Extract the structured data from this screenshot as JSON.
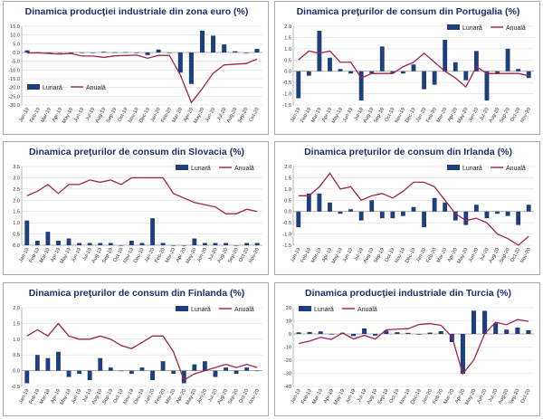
{
  "colors": {
    "bar": "#1d3f7e",
    "line": "#a0224e",
    "title": "#1f2d6b",
    "border": "#a9a9a9",
    "grid": "#dddddd"
  },
  "chart_data": [
    {
      "id": "euro-industry",
      "type": "bar",
      "title": "Dinamica producţiei industriale din zona euro (%)",
      "ylim": [
        -30,
        15
      ],
      "yticks": [
        "15.0",
        "10.0",
        "5.0",
        "0.0",
        "-5.0",
        "-10.0",
        "-15.0",
        "-20.0",
        "-25.0",
        "-30.0"
      ],
      "yticks_values": [
        15,
        10,
        5,
        0,
        -5,
        -10,
        -15,
        -20,
        -25,
        -30
      ],
      "categories": [
        "Jan-19",
        "Feb-19",
        "Mar-19",
        "Apr-19",
        "May-19",
        "Jun-19",
        "Jul-19",
        "Aug-19",
        "Sep-19",
        "Oct-19",
        "Nov-19",
        "Dec-19",
        "Jan-20",
        "Feb-20",
        "Mar-20",
        "Apr-20",
        "May-20",
        "Jun-20",
        "Jul-20",
        "Aug-20",
        "Sep-20",
        "Oct-20"
      ],
      "legend": {
        "position": "bottom-left",
        "bar_label": "Lunară",
        "line_label": "Anuală"
      },
      "series": [
        {
          "name": "Lunară",
          "kind": "bar",
          "values": [
            1.2,
            0.2,
            -0.3,
            -0.3,
            -0.5,
            -0.2,
            -0.3,
            0.4,
            0.1,
            0.2,
            -0.3,
            -1.5,
            1.7,
            -0.1,
            -11.5,
            -18.0,
            12.5,
            9.6,
            4.6,
            0.7,
            -0.1,
            2.1
          ]
        },
        {
          "name": "Anuală",
          "kind": "line",
          "values": [
            -0.3,
            -0.2,
            -0.6,
            -0.9,
            -0.6,
            -2.0,
            -2.0,
            -2.8,
            -1.9,
            -1.7,
            -1.5,
            -3.3,
            -1.6,
            -1.7,
            -12.9,
            -28.6,
            -20.7,
            -11.8,
            -7.1,
            -6.7,
            -6.3,
            -3.8
          ]
        }
      ]
    },
    {
      "id": "portugal-cpi",
      "type": "bar",
      "title": "Dinamica preţurilor de consum din Portugalia (%)",
      "ylim": [
        -1.5,
        2.0
      ],
      "yticks": [
        "2.0",
        "1.5",
        "1.0",
        "0.5",
        "0.0",
        "-0.5",
        "-1.0",
        "-1.5"
      ],
      "yticks_values": [
        2.0,
        1.5,
        1.0,
        0.5,
        0.0,
        -0.5,
        -1.0,
        -1.5
      ],
      "categories": [
        "Jan-19",
        "Feb-19",
        "Mar-19",
        "Apr-19",
        "May-19",
        "Jun-19",
        "Jul-19",
        "Aug-19",
        "Sep-19",
        "Oct-19",
        "Nov-19",
        "Dec-19",
        "Jan-20",
        "Feb-20",
        "Mar-20",
        "Apr-20",
        "May-20",
        "Jun-20",
        "Jul-20",
        "Aug-20",
        "Sep-20",
        "Oct-20",
        "Nov-20"
      ],
      "legend": {
        "position": "top-right",
        "bar_label": "Lunară",
        "line_label": "Anuală"
      },
      "series": [
        {
          "name": "Lunară",
          "kind": "bar",
          "values": [
            -1.2,
            -0.2,
            1.8,
            0.6,
            0.1,
            -0.1,
            -1.3,
            -0.1,
            1.1,
            -0.1,
            -0.1,
            0.3,
            -0.8,
            -0.6,
            1.4,
            0.4,
            -0.4,
            0.9,
            -1.3,
            -0.1,
            1.0,
            0.1,
            -0.3
          ]
        },
        {
          "name": "Anuală",
          "kind": "line",
          "values": [
            0.5,
            0.9,
            0.8,
            0.9,
            0.4,
            0.4,
            -0.3,
            -0.1,
            -0.1,
            -0.1,
            0.2,
            0.4,
            0.8,
            0.4,
            0.0,
            -0.3,
            -0.7,
            0.2,
            -0.1,
            -0.1,
            -0.1,
            -0.1,
            -0.2
          ]
        }
      ]
    },
    {
      "id": "slovakia-cpi",
      "type": "bar",
      "title": "Dinamica preţurilor de consum din Slovacia (%)",
      "ylim": [
        0,
        3.5
      ],
      "yticks": [
        "3.5",
        "3.0",
        "2.5",
        "2.0",
        "1.5",
        "1.0",
        "0.5",
        "0.0"
      ],
      "yticks_values": [
        3.5,
        3.0,
        2.5,
        2.0,
        1.5,
        1.0,
        0.5,
        0.0
      ],
      "categories": [
        "Jan-19",
        "Feb-19",
        "Mar-19",
        "Apr-19",
        "May-19",
        "Jun-19",
        "Jul-19",
        "Aug-19",
        "Sep-19",
        "Oct-19",
        "Nov-19",
        "Dec-19",
        "Jan-20",
        "Feb-20",
        "Mar-20",
        "Apr-20",
        "May-20",
        "Jun-20",
        "Jul-20",
        "Aug-20",
        "Sep-20",
        "Oct-20",
        "Nov-20"
      ],
      "legend": {
        "position": "top-right",
        "bar_label": "Lunară",
        "line_label": "Anuală"
      },
      "series": [
        {
          "name": "Lunară",
          "kind": "bar",
          "values": [
            1.1,
            0.2,
            0.6,
            0.2,
            0.3,
            0.1,
            0.1,
            0.1,
            0.1,
            0.0,
            0.2,
            0.1,
            1.2,
            0.1,
            0.0,
            0.0,
            0.3,
            0.1,
            0.1,
            0.1,
            0.0,
            0.1,
            0.1
          ]
        },
        {
          "name": "Anuală",
          "kind": "line",
          "values": [
            2.2,
            2.4,
            2.7,
            2.3,
            2.7,
            2.7,
            2.9,
            2.8,
            2.9,
            2.7,
            3.0,
            3.0,
            3.0,
            3.0,
            2.3,
            2.1,
            1.9,
            1.8,
            1.7,
            1.4,
            1.4,
            1.6,
            1.5
          ]
        }
      ]
    },
    {
      "id": "ireland-cpi",
      "type": "bar",
      "title": "Dinamica preţurilor de consum din Irlanda (%)",
      "ylim": [
        -1.5,
        2.0
      ],
      "yticks": [
        "2.0",
        "1.5",
        "1.0",
        "0.5",
        "0.0",
        "-0.5",
        "-1.0",
        "-1.5"
      ],
      "yticks_values": [
        2.0,
        1.5,
        1.0,
        0.5,
        0.0,
        -0.5,
        -1.0,
        -1.5
      ],
      "categories": [
        "Jan-19",
        "Feb-19",
        "Mar-19",
        "Apr-19",
        "May-19",
        "Jun-19",
        "Jul-19",
        "Aug-19",
        "Sep-19",
        "Oct-19",
        "Nov-19",
        "Dec-19",
        "Jan-20",
        "Feb-20",
        "Mar-20",
        "Apr-20",
        "May-20",
        "Jun-20",
        "Jul-20",
        "Aug-20",
        "Sep-20",
        "Oct-20",
        "Nov-20"
      ],
      "legend": {
        "position": "top-right",
        "bar_label": "Lunară",
        "line_label": "Anuală"
      },
      "series": [
        {
          "name": "Lunară",
          "kind": "bar",
          "values": [
            -0.7,
            0.8,
            0.8,
            0.4,
            -0.1,
            0.1,
            -0.4,
            0.5,
            -0.3,
            -0.3,
            -0.2,
            0.2,
            -0.7,
            0.6,
            0.4,
            -0.4,
            -0.6,
            0.3,
            -0.3,
            -0.1,
            -0.2,
            -0.6,
            0.3
          ]
        },
        {
          "name": "Anuală",
          "kind": "line",
          "values": [
            0.7,
            0.7,
            1.1,
            1.7,
            1.0,
            1.1,
            0.5,
            0.7,
            0.8,
            0.6,
            0.9,
            1.3,
            1.3,
            1.1,
            0.5,
            -0.1,
            -0.4,
            -0.3,
            -0.5,
            -1.0,
            -1.2,
            -1.5,
            -1.1
          ]
        }
      ]
    },
    {
      "id": "finland-cpi",
      "type": "bar",
      "title": "Dinamica preţurilor de consum din Finlanda (%)",
      "ylim": [
        -0.5,
        2.0
      ],
      "yticks": [
        "2.0",
        "1.5",
        "1.0",
        "0.5",
        "0.0",
        "-0.5"
      ],
      "yticks_values": [
        2.0,
        1.5,
        1.0,
        0.5,
        0.0,
        -0.5
      ],
      "categories": [
        "Jan-19",
        "Feb-19",
        "Mar-19",
        "Apr-19",
        "May-19",
        "Jun-19",
        "Jul-19",
        "Aug-19",
        "Sep-19",
        "Oct-19",
        "Nov-19",
        "Dec-19",
        "Jan-20",
        "Feb-20",
        "Mar-20",
        "Apr-20",
        "May-20",
        "Jun-20",
        "Jul-20",
        "Aug-20",
        "Sep-20",
        "Oct-20",
        "Nov-20"
      ],
      "legend": {
        "position": "top-right",
        "bar_label": "Lunară",
        "line_label": "Anuală"
      },
      "series": [
        {
          "name": "Lunară",
          "kind": "bar",
          "values": [
            -0.4,
            0.5,
            0.4,
            0.6,
            -0.2,
            -0.1,
            -0.3,
            0.4,
            0.1,
            0.0,
            -0.1,
            0.1,
            -0.3,
            0.3,
            -0.1,
            -0.4,
            0.2,
            0.3,
            -0.2,
            0.1,
            -0.1,
            0.1,
            0.0
          ]
        },
        {
          "name": "Anuală",
          "kind": "line",
          "values": [
            1.1,
            1.3,
            1.1,
            1.5,
            1.1,
            1.0,
            1.0,
            1.1,
            1.0,
            0.8,
            0.7,
            0.9,
            1.1,
            1.1,
            0.6,
            -0.3,
            -0.1,
            0.0,
            0.1,
            0.2,
            0.1,
            0.2,
            0.1
          ]
        }
      ]
    },
    {
      "id": "turkey-industry",
      "type": "bar",
      "title": "Dinamica producţiei industriale din Turcia (%)",
      "ylim": [
        -40,
        20
      ],
      "yticks": [
        "20",
        "10",
        "0",
        "-10",
        "-20",
        "-30",
        "-40"
      ],
      "yticks_values": [
        20,
        10,
        0,
        -10,
        -20,
        -30,
        -40
      ],
      "categories": [
        "Jan-19",
        "Feb-19",
        "Mar-19",
        "Apr-19",
        "May-19",
        "Jun-19",
        "Jul-19",
        "Aug-19",
        "Sep-19",
        "Oct-19",
        "Nov-19",
        "Dec-19",
        "Jan-20",
        "Feb-20",
        "Mar-20",
        "Apr-20",
        "May-20",
        "Jun-20",
        "Jul-20",
        "Aug-20",
        "Sep-20",
        "Oct-20"
      ],
      "legend": {
        "position": "top-left",
        "bar_label": "Lunară",
        "line_label": "Anuală"
      },
      "series": [
        {
          "name": "Lunară",
          "kind": "bar",
          "values": [
            1.2,
            1.5,
            1.9,
            -0.5,
            0.9,
            -1.6,
            4.2,
            -1.3,
            2.6,
            1.3,
            0.8,
            -0.5,
            1.0,
            2.1,
            -6.2,
            -30.4,
            17.7,
            17.6,
            8.2,
            3.3,
            4.8,
            2.8
          ]
        },
        {
          "name": "Anuală",
          "kind": "line",
          "values": [
            -7.3,
            -5.4,
            -2.6,
            -4.2,
            0.7,
            -3.8,
            -1.1,
            -3.9,
            3.2,
            3.6,
            4.0,
            7.2,
            7.9,
            6.6,
            -2.0,
            -30.4,
            -19.9,
            0.2,
            8.9,
            7.0,
            11.0,
            9.6
          ]
        }
      ]
    }
  ]
}
